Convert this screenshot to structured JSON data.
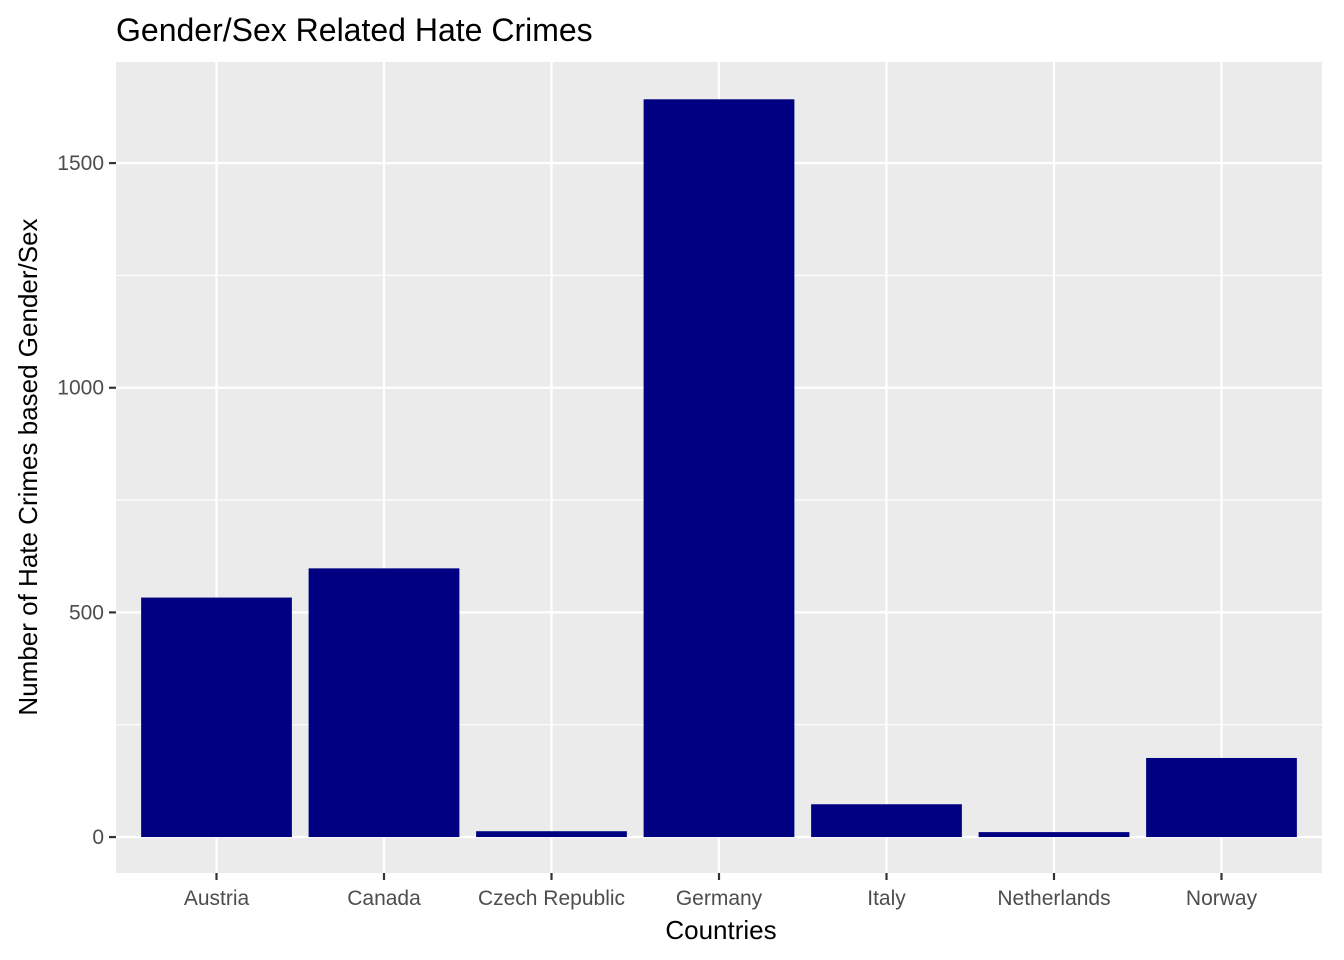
{
  "chart_data": {
    "type": "bar",
    "title": "Gender/Sex Related Hate Crimes",
    "xlabel": "Countries",
    "ylabel": "Number of Hate Crimes based Gender/Sex",
    "categories": [
      "Austria",
      "Canada",
      "Czech Republic",
      "Germany",
      "Italy",
      "Netherlands",
      "Norway"
    ],
    "values": [
      533,
      598,
      13,
      1642,
      73,
      11,
      176
    ],
    "ylim": [
      -80,
      1725
    ],
    "yticks": [
      0,
      500,
      1000,
      1500
    ],
    "ytick_labels": [
      "0",
      "500",
      "1000",
      "1500"
    ],
    "grid": true,
    "legend": "none",
    "colors": {
      "bar": "#000080",
      "panel_background": "#EBEBEB",
      "grid": "#FFFFFF",
      "tick_text": "#4D4D4D",
      "tick_mark": "#333333"
    }
  }
}
